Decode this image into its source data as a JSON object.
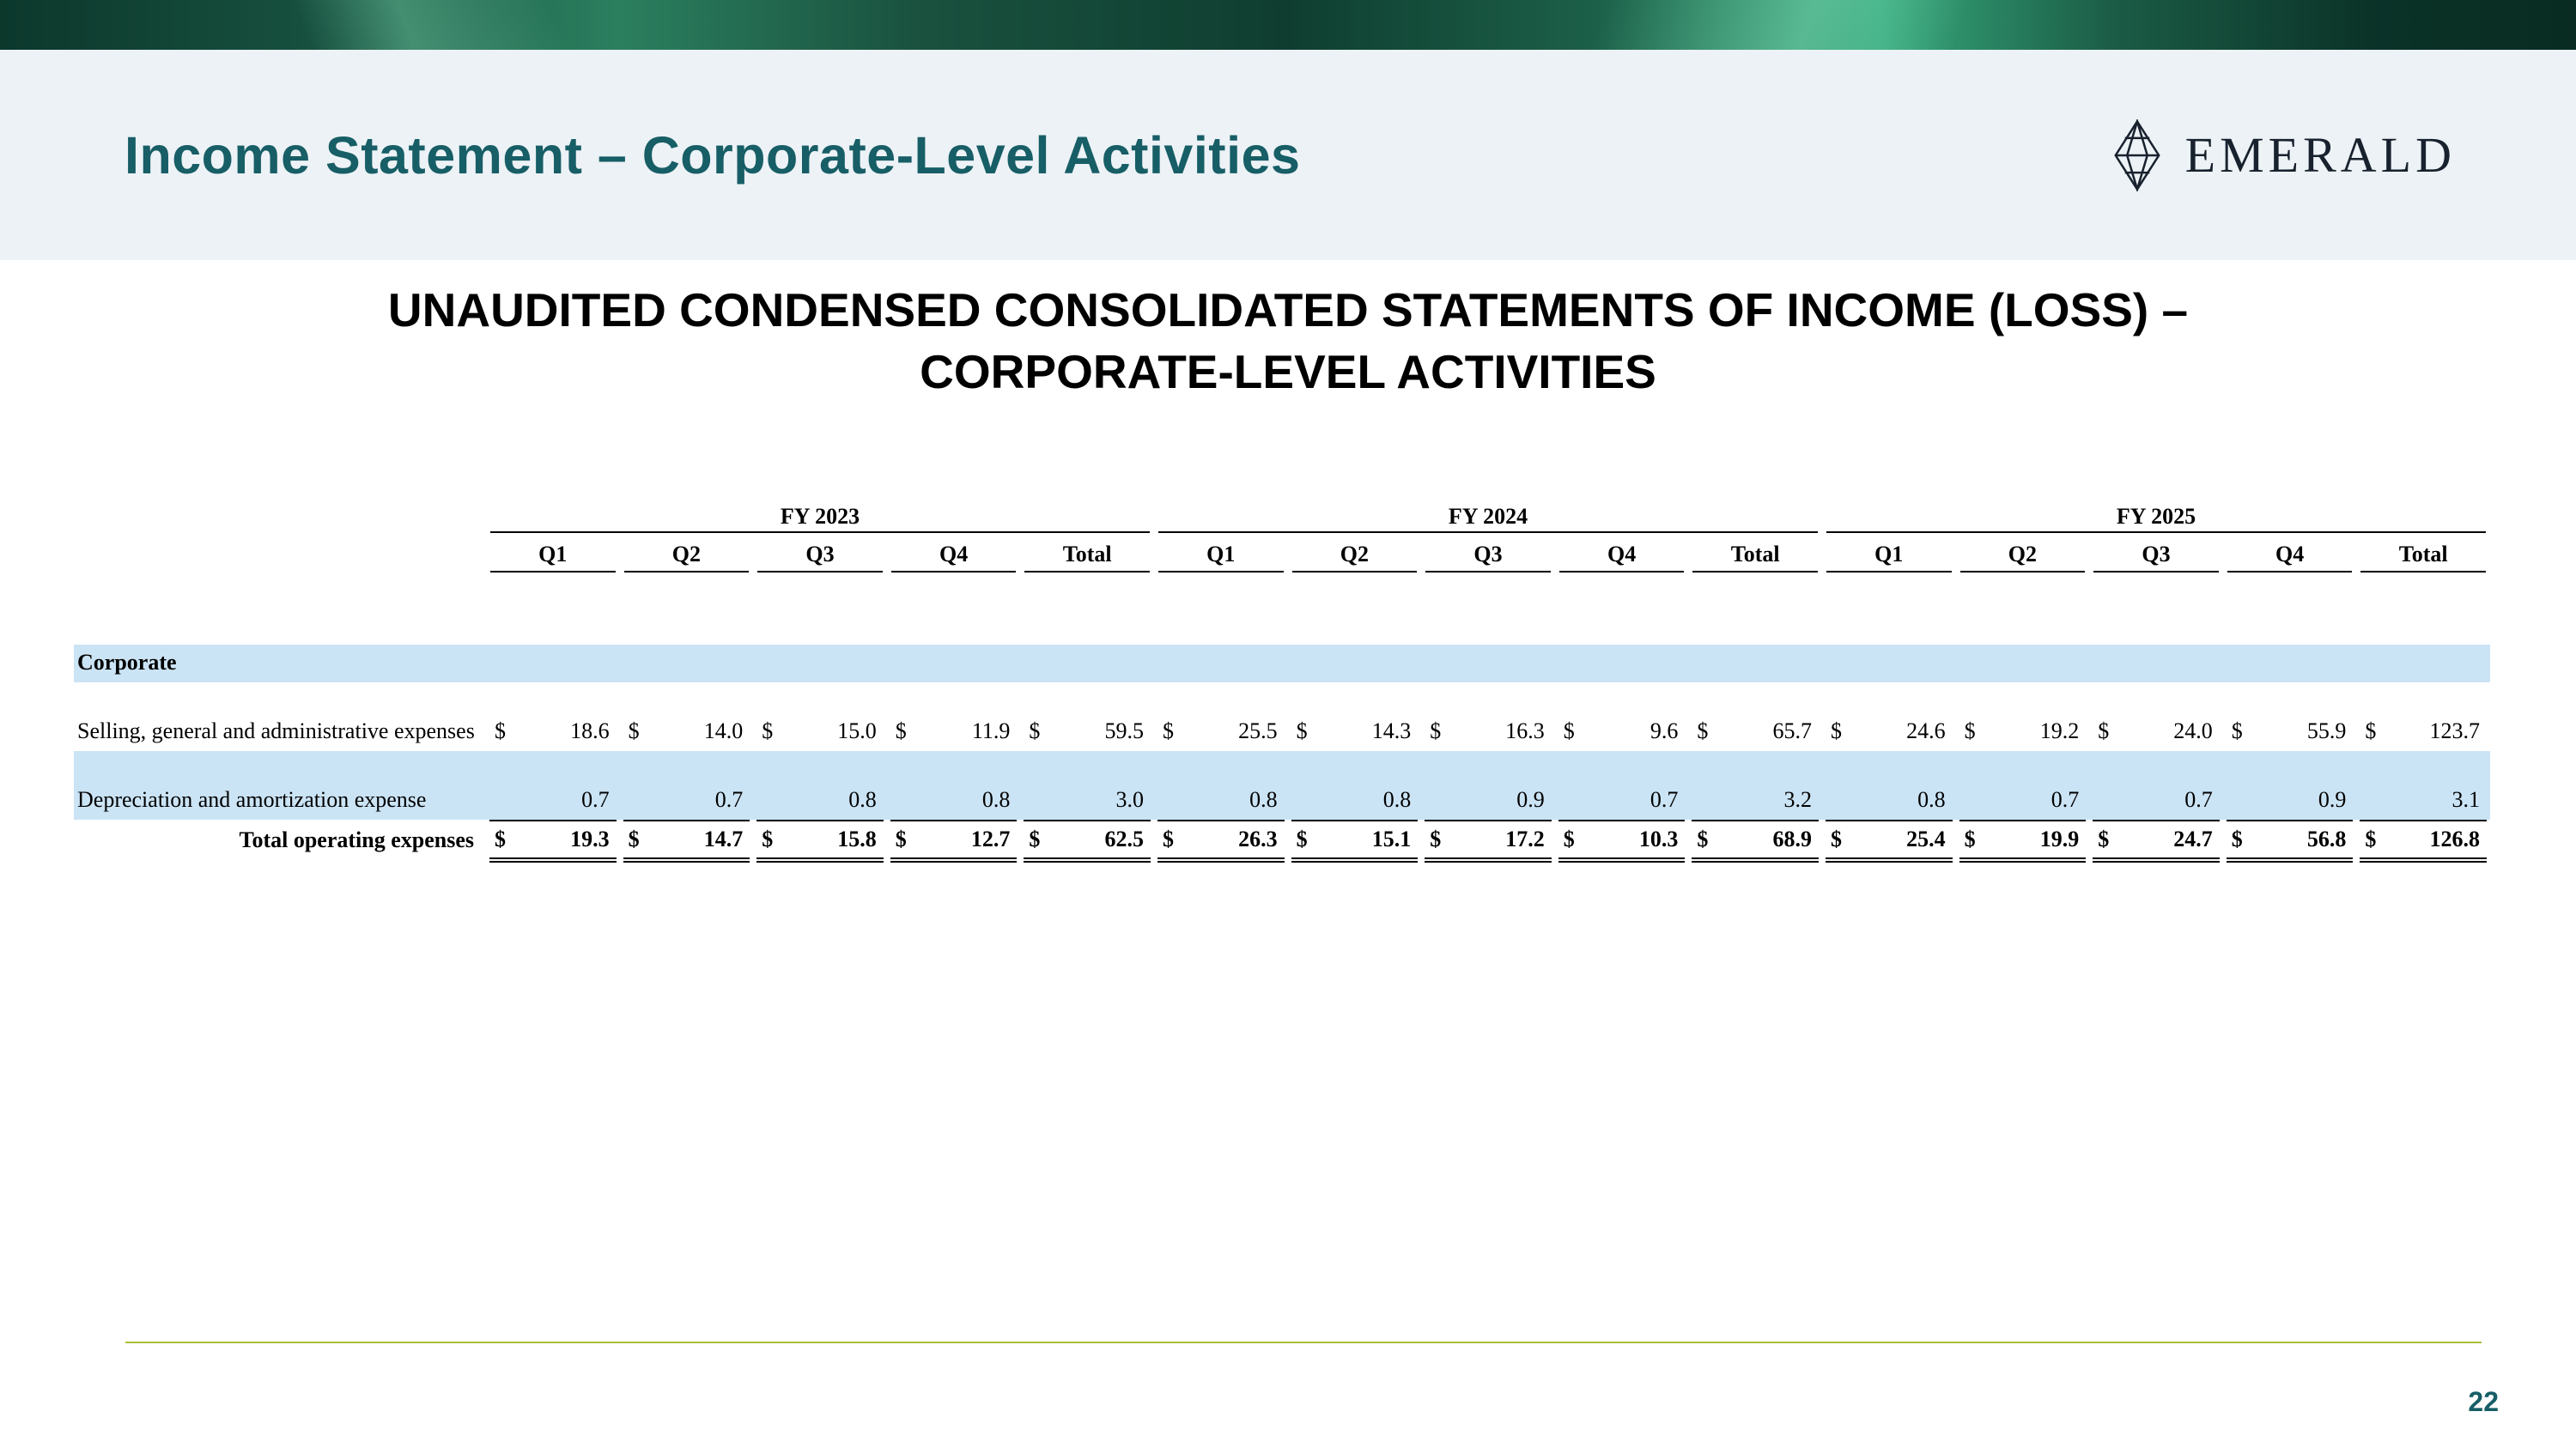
{
  "header": {
    "title": "Income Statement – Corporate-Level Activities",
    "logo_text": "EMERALD"
  },
  "statement": {
    "heading_line1": "UNAUDITED CONDENSED CONSOLIDATED STATEMENTS OF INCOME (LOSS) –",
    "heading_line2": "CORPORATE-LEVEL ACTIVITIES"
  },
  "table": {
    "currency_symbol": "$",
    "year_groups": [
      "FY 2023",
      "FY 2024",
      "FY 2025"
    ],
    "quarter_headers": [
      "Q1",
      "Q2",
      "Q3",
      "Q4",
      "Total"
    ],
    "section_label": "Corporate",
    "rows": [
      {
        "label": "Selling, general and administrative expenses",
        "dollar": true,
        "highlight": false,
        "total": false,
        "values": [
          "18.6",
          "14.0",
          "15.0",
          "11.9",
          "59.5",
          "25.5",
          "14.3",
          "16.3",
          "9.6",
          "65.7",
          "24.6",
          "19.2",
          "24.0",
          "55.9",
          "123.7"
        ]
      },
      {
        "label": "Depreciation and amortization expense",
        "dollar": false,
        "highlight": true,
        "total": false,
        "values": [
          "0.7",
          "0.7",
          "0.8",
          "0.8",
          "3.0",
          "0.8",
          "0.8",
          "0.9",
          "0.7",
          "3.2",
          "0.8",
          "0.7",
          "0.7",
          "0.9",
          "3.1"
        ]
      },
      {
        "label": "Total operating expenses",
        "dollar": true,
        "highlight": false,
        "total": true,
        "values": [
          "19.3",
          "14.7",
          "15.8",
          "12.7",
          "62.5",
          "26.3",
          "15.1",
          "17.2",
          "10.3",
          "68.9",
          "25.4",
          "19.9",
          "24.7",
          "56.8",
          "126.8"
        ]
      }
    ]
  },
  "footer": {
    "page_number": "22"
  },
  "colors": {
    "title_teal": "#175e66",
    "row_highlight": "#cbe4f5",
    "divider_green": "#a9bf3d",
    "header_background": "#edf2f6"
  }
}
